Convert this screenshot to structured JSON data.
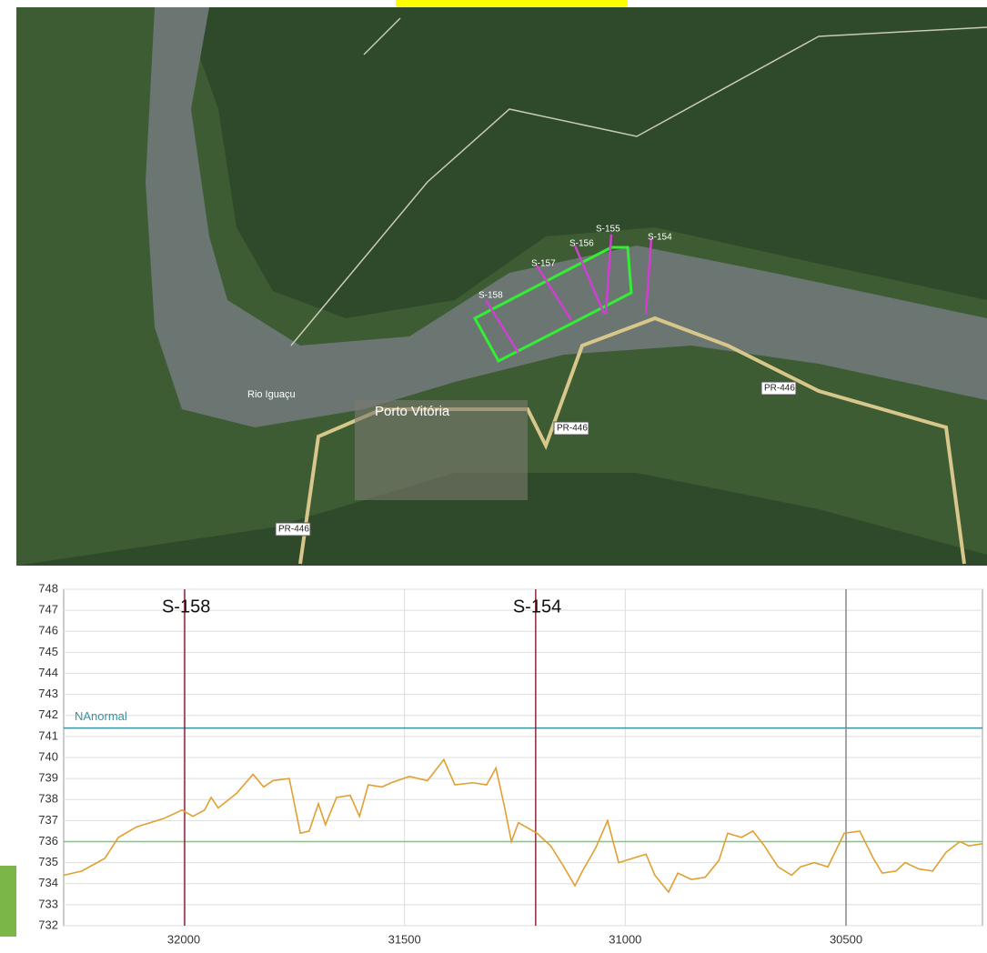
{
  "map_data": {
    "labels": [
      "S-158",
      "S-157",
      "S-156",
      "S-155",
      "S-154",
      "Rio Iguaçu",
      "Porto Vitória",
      "PR-446",
      "PR-446",
      "PR-446"
    ]
  },
  "chart_data": {
    "type": "line",
    "x": [
      32272,
      32231,
      32179,
      32148,
      32107,
      32045,
      32004,
      31979,
      31953,
      31938,
      31922,
      31880,
      31843,
      31819,
      31798,
      31761,
      31736,
      31716,
      31695,
      31679,
      31654,
      31623,
      31602,
      31582,
      31551,
      31530,
      31489,
      31448,
      31411,
      31386,
      31345,
      31314,
      31293,
      31273,
      31258,
      31242,
      31200,
      31169,
      31139,
      31114,
      31097,
      31067,
      31040,
      31015,
      30984,
      30953,
      30933,
      30902,
      30881,
      30850,
      30819,
      30788,
      30768,
      30737,
      30711,
      30685,
      30654,
      30623,
      30603,
      30572,
      30541,
      30504,
      30469,
      30438,
      30418,
      30387,
      30366,
      30335,
      30304,
      30273,
      30242,
      30222,
      30191
    ],
    "series": [
      {
        "color": "#e0a030",
        "values": [
          734.4,
          734.6,
          735.2,
          736.2,
          736.7,
          737.1,
          737.5,
          737.2,
          737.5,
          738.1,
          737.6,
          738.3,
          739.2,
          738.6,
          738.9,
          739.0,
          736.4,
          736.5,
          737.8,
          736.8,
          738.1,
          738.2,
          737.2,
          738.7,
          738.6,
          738.8,
          739.1,
          738.9,
          739.9,
          738.7,
          738.8,
          738.7,
          739.5,
          737.6,
          736.0,
          736.9,
          736.4,
          735.8,
          734.8,
          733.9,
          734.6,
          735.7,
          737.0,
          735.0,
          735.2,
          735.4,
          734.4,
          733.6,
          734.5,
          734.2,
          734.3,
          735.1,
          736.4,
          736.2,
          736.5,
          735.8,
          734.8,
          734.4,
          734.8,
          735.0,
          734.8,
          736.4,
          736.5,
          735.2,
          734.5,
          734.6,
          735.0,
          734.7,
          734.6,
          735.5,
          736.0,
          735.8,
          735.9
        ]
      }
    ],
    "xlim": [
      32272,
      30191
    ],
    "xticks": [
      32000,
      31500,
      31000,
      30500
    ],
    "ylim": [
      732,
      748
    ],
    "yticks": [
      732,
      733,
      734,
      735,
      736,
      737,
      738,
      739,
      740,
      741,
      742,
      743,
      744,
      745,
      746,
      747,
      748
    ],
    "grid": true,
    "vlines": [
      {
        "label": "S-158",
        "x": 31998,
        "color": "#8b2a3a"
      },
      {
        "label": "S-154",
        "x": 31203,
        "color": "#8b2a3a"
      },
      {
        "x": 30500,
        "color": "#888888"
      }
    ],
    "hlines": [
      {
        "label": "NAnormal",
        "y": 741.4,
        "color": "#3a8fa0"
      },
      {
        "y": 736,
        "color": "#77cc77"
      }
    ]
  }
}
